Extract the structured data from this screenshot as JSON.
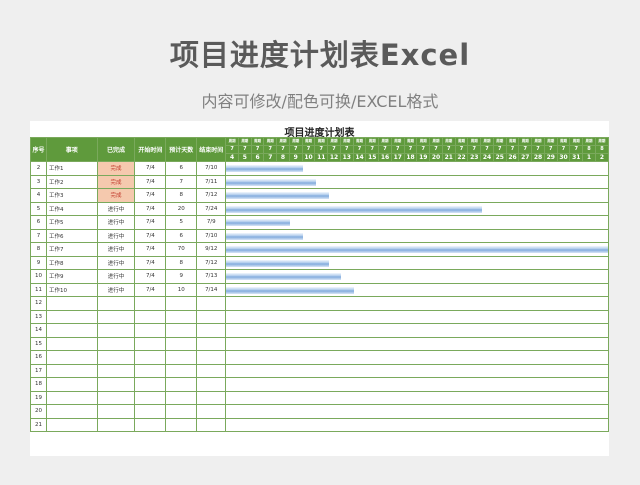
{
  "header": {
    "title": "项目进度计划表Excel",
    "subtitle": "内容可修改/配色可换/EXCEL格式"
  },
  "sheet": {
    "title": "项目进度计划表",
    "columns": {
      "seq": "序号",
      "item": "事项",
      "status": "已完成",
      "start": "开始时间",
      "days": "预计天数",
      "end": "结束时间"
    },
    "weekday_label": "周期",
    "timeline": [
      {
        "m": "7",
        "d": "4"
      },
      {
        "m": "7",
        "d": "5"
      },
      {
        "m": "7",
        "d": "6"
      },
      {
        "m": "7",
        "d": "7"
      },
      {
        "m": "7",
        "d": "8"
      },
      {
        "m": "7",
        "d": "9"
      },
      {
        "m": "7",
        "d": "10"
      },
      {
        "m": "7",
        "d": "11"
      },
      {
        "m": "7",
        "d": "12"
      },
      {
        "m": "7",
        "d": "13"
      },
      {
        "m": "7",
        "d": "14"
      },
      {
        "m": "7",
        "d": "15"
      },
      {
        "m": "7",
        "d": "16"
      },
      {
        "m": "7",
        "d": "17"
      },
      {
        "m": "7",
        "d": "18"
      },
      {
        "m": "7",
        "d": "19"
      },
      {
        "m": "7",
        "d": "20"
      },
      {
        "m": "7",
        "d": "21"
      },
      {
        "m": "7",
        "d": "22"
      },
      {
        "m": "7",
        "d": "23"
      },
      {
        "m": "7",
        "d": "24"
      },
      {
        "m": "7",
        "d": "25"
      },
      {
        "m": "7",
        "d": "26"
      },
      {
        "m": "7",
        "d": "27"
      },
      {
        "m": "7",
        "d": "28"
      },
      {
        "m": "7",
        "d": "29"
      },
      {
        "m": "7",
        "d": "30"
      },
      {
        "m": "7",
        "d": "31"
      },
      {
        "m": "8",
        "d": "1"
      },
      {
        "m": "8",
        "d": "2"
      }
    ],
    "rows": [
      {
        "seq": "2",
        "item": "工作1",
        "status": "完成",
        "start": "7/4",
        "days": "6",
        "end": "7/10",
        "bar_days": 6
      },
      {
        "seq": "3",
        "item": "工作2",
        "status": "完成",
        "start": "7/4",
        "days": "7",
        "end": "7/11",
        "bar_days": 7
      },
      {
        "seq": "4",
        "item": "工作3",
        "status": "完成",
        "start": "7/4",
        "days": "8",
        "end": "7/12",
        "bar_days": 8
      },
      {
        "seq": "5",
        "item": "工作4",
        "status": "进行中",
        "start": "7/4",
        "days": "20",
        "end": "7/24",
        "bar_days": 20
      },
      {
        "seq": "6",
        "item": "工作5",
        "status": "进行中",
        "start": "7/4",
        "days": "5",
        "end": "7/9",
        "bar_days": 5
      },
      {
        "seq": "7",
        "item": "工作6",
        "status": "进行中",
        "start": "7/4",
        "days": "6",
        "end": "7/10",
        "bar_days": 6
      },
      {
        "seq": "8",
        "item": "工作7",
        "status": "进行中",
        "start": "7/4",
        "days": "70",
        "end": "9/12",
        "bar_days": 70
      },
      {
        "seq": "9",
        "item": "工作8",
        "status": "进行中",
        "start": "7/4",
        "days": "8",
        "end": "7/12",
        "bar_days": 8
      },
      {
        "seq": "10",
        "item": "工作9",
        "status": "进行中",
        "start": "7/4",
        "days": "9",
        "end": "7/13",
        "bar_days": 9
      },
      {
        "seq": "11",
        "item": "工作10",
        "status": "进行中",
        "start": "7/4",
        "days": "10",
        "end": "7/14",
        "bar_days": 10
      },
      {
        "seq": "12"
      },
      {
        "seq": "13"
      },
      {
        "seq": "14"
      },
      {
        "seq": "15"
      },
      {
        "seq": "16"
      },
      {
        "seq": "17"
      },
      {
        "seq": "18"
      },
      {
        "seq": "19"
      },
      {
        "seq": "20"
      },
      {
        "seq": "21"
      }
    ]
  }
}
